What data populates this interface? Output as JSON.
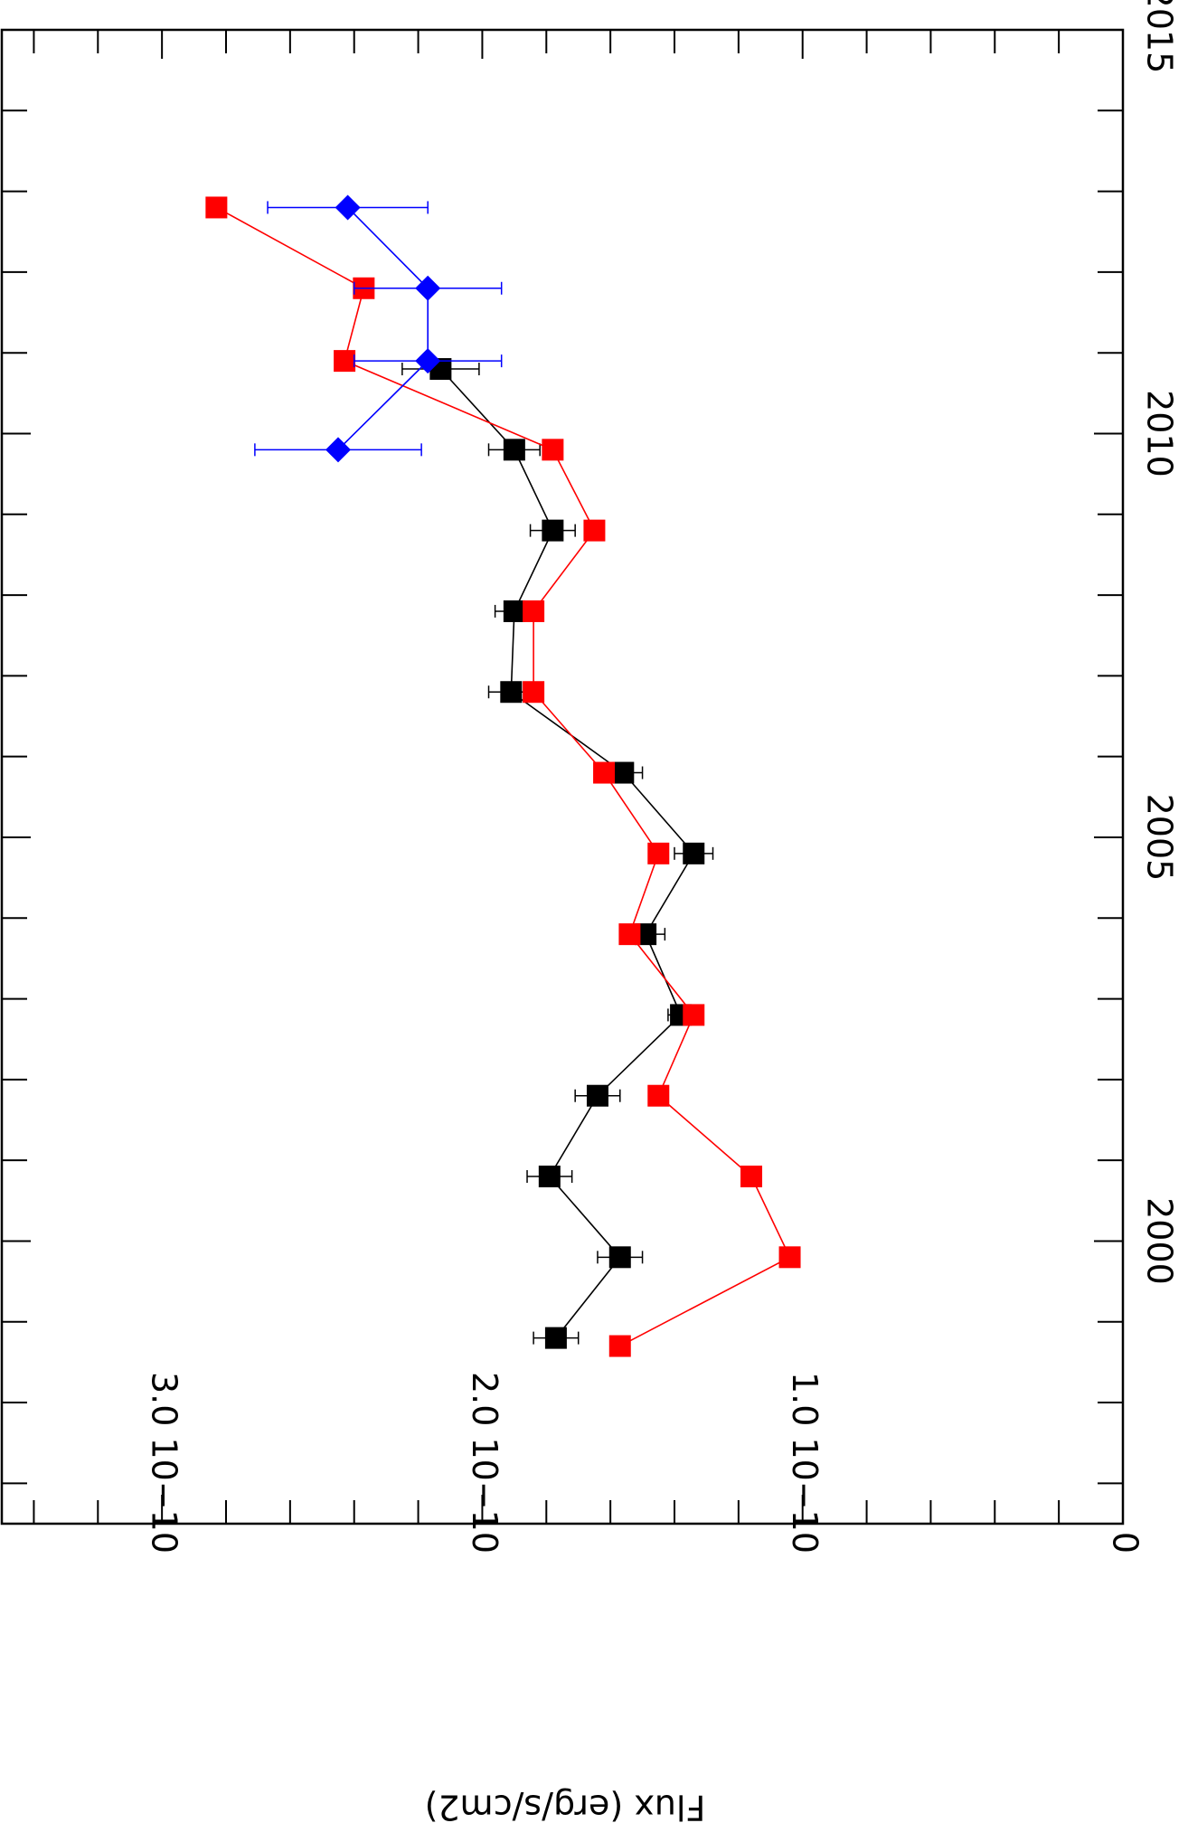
{
  "chart_data": {
    "type": "scatter",
    "orientation": "rotated-90",
    "ylabel": "Flux  (erg/s/cm2)",
    "xlabel": "",
    "x_ticks": [
      {
        "value": 2000,
        "label": "2000"
      },
      {
        "value": 2005,
        "label": "2005"
      },
      {
        "value": 2010,
        "label": "2010"
      },
      {
        "value": 2015,
        "label": "2015"
      }
    ],
    "y_ticks": [
      {
        "value": 0,
        "label": "0"
      },
      {
        "value": 1.0,
        "label": "1.0  10−10"
      },
      {
        "value": 2.0,
        "label": "2.0  10−10"
      },
      {
        "value": 3.0,
        "label": "3.0  10−10"
      }
    ],
    "xlim": [
      1996.5,
      2015
    ],
    "ylim": [
      0,
      3.5
    ],
    "grid": false,
    "series": [
      {
        "color": "#000000",
        "marker": "square",
        "x": [
          1998.8,
          1999.8,
          2000.8,
          2001.8,
          2002.8,
          2003.8,
          2004.8,
          2005.8,
          2006.8,
          2007.8,
          2008.8,
          2009.8,
          2010.8
        ],
        "y": [
          1.77,
          1.57,
          1.79,
          1.64,
          1.38,
          1.49,
          1.34,
          1.56,
          1.91,
          1.9,
          1.78,
          1.9,
          2.13
        ],
        "yerr": [
          0.07,
          0.07,
          0.07,
          0.07,
          0.04,
          0.06,
          0.06,
          0.06,
          0.07,
          0.06,
          0.07,
          0.08,
          0.12
        ]
      },
      {
        "color": "#ff0000",
        "marker": "square",
        "x": [
          1998.7,
          1999.8,
          2000.8,
          2001.8,
          2002.8,
          2003.8,
          2004.8,
          2005.8,
          2006.8,
          2007.8,
          2008.8,
          2009.8,
          2010.9,
          2011.8,
          2012.8
        ],
        "y": [
          1.57,
          1.04,
          1.16,
          1.45,
          1.34,
          1.54,
          1.45,
          1.62,
          1.84,
          1.84,
          1.65,
          1.78,
          2.43,
          2.37,
          2.83
        ]
      },
      {
        "color": "#0000ff",
        "marker": "diamond",
        "x": [
          2009.8,
          2010.9,
          2011.8,
          2012.8
        ],
        "y": [
          2.45,
          2.17,
          2.17,
          2.42
        ],
        "yerr": [
          0.26,
          0.23,
          0.23,
          0.25
        ]
      }
    ]
  }
}
